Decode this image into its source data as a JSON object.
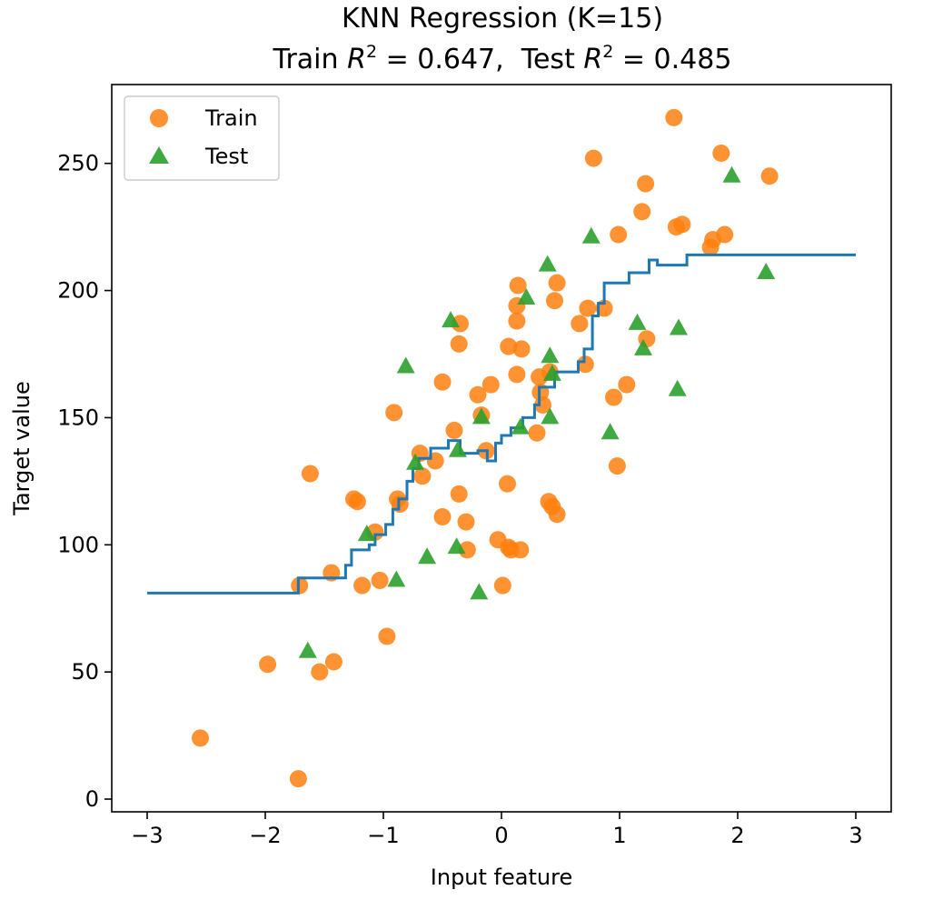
{
  "chart_data": {
    "type": "scatter",
    "title": {
      "line1": "KNN Regression (K=15)",
      "line2_train_prefix": "Train ",
      "line2_train_value": "0.647",
      "line2_sep": ",  ",
      "line2_test_prefix": "Test ",
      "line2_test_value": "0.485",
      "r_symbol": "R",
      "r_exponent": "2"
    },
    "xlabel": "Input feature",
    "ylabel": "Target value",
    "xlim": [
      -3.3,
      3.3
    ],
    "ylim": [
      -5,
      281
    ],
    "xticks": [
      -3,
      -2,
      -1,
      0,
      1,
      2,
      3
    ],
    "xtick_labels": [
      "−3",
      "−2",
      "−1",
      "0",
      "1",
      "2",
      "3"
    ],
    "yticks": [
      0,
      50,
      100,
      150,
      200,
      250
    ],
    "ytick_labels": [
      "0",
      "50",
      "100",
      "150",
      "200",
      "250"
    ],
    "legend": {
      "placement": "top-left",
      "train_label": "Train",
      "test_label": "Test"
    },
    "colors": {
      "train": "#ff7f0e",
      "test": "#2ca02c",
      "line": "#1f77b4"
    },
    "series": [
      {
        "name": "Train",
        "marker": "circle",
        "points": [
          [
            -2.55,
            24
          ],
          [
            -1.98,
            53
          ],
          [
            -1.72,
            8
          ],
          [
            -1.71,
            84
          ],
          [
            -1.62,
            128
          ],
          [
            -1.54,
            50
          ],
          [
            -1.44,
            89
          ],
          [
            -1.42,
            54
          ],
          [
            -1.25,
            118
          ],
          [
            -1.22,
            117
          ],
          [
            -1.18,
            84
          ],
          [
            -1.07,
            105
          ],
          [
            -1.03,
            86
          ],
          [
            -0.97,
            64
          ],
          [
            -0.91,
            152
          ],
          [
            -0.88,
            118
          ],
          [
            -0.86,
            116
          ],
          [
            -0.69,
            136
          ],
          [
            -0.67,
            127
          ],
          [
            -0.56,
            133
          ],
          [
            -0.5,
            164
          ],
          [
            -0.5,
            111
          ],
          [
            -0.4,
            145
          ],
          [
            -0.36,
            179
          ],
          [
            -0.35,
            187
          ],
          [
            -0.36,
            120
          ],
          [
            -0.3,
            109
          ],
          [
            -0.29,
            98
          ],
          [
            -0.2,
            159
          ],
          [
            -0.17,
            151
          ],
          [
            -0.13,
            137
          ],
          [
            -0.09,
            163
          ],
          [
            -0.03,
            102
          ],
          [
            0.01,
            84
          ],
          [
            0.05,
            124
          ],
          [
            0.06,
            178
          ],
          [
            0.06,
            99
          ],
          [
            0.08,
            98
          ],
          [
            0.13,
            194
          ],
          [
            0.13,
            188
          ],
          [
            0.14,
            202
          ],
          [
            0.13,
            167
          ],
          [
            0.17,
            177
          ],
          [
            0.16,
            98
          ],
          [
            0.3,
            144
          ],
          [
            0.32,
            166
          ],
          [
            0.33,
            160
          ],
          [
            0.35,
            155
          ],
          [
            0.4,
            117
          ],
          [
            0.41,
            168
          ],
          [
            0.43,
            115
          ],
          [
            0.45,
            196
          ],
          [
            0.47,
            203
          ],
          [
            0.47,
            112
          ],
          [
            0.66,
            187
          ],
          [
            0.71,
            171
          ],
          [
            0.73,
            193
          ],
          [
            0.78,
            252
          ],
          [
            0.87,
            193
          ],
          [
            0.95,
            158
          ],
          [
            0.98,
            131
          ],
          [
            0.99,
            222
          ],
          [
            1.06,
            163
          ],
          [
            1.19,
            231
          ],
          [
            1.22,
            242
          ],
          [
            1.23,
            181
          ],
          [
            1.46,
            268
          ],
          [
            1.48,
            225
          ],
          [
            1.53,
            226
          ],
          [
            1.77,
            217
          ],
          [
            1.79,
            220
          ],
          [
            1.86,
            254
          ],
          [
            1.89,
            222
          ],
          [
            2.27,
            245
          ]
        ]
      },
      {
        "name": "Test",
        "marker": "triangle",
        "points": [
          [
            -1.64,
            58
          ],
          [
            -1.14,
            104
          ],
          [
            -0.89,
            86
          ],
          [
            -0.81,
            170
          ],
          [
            -0.73,
            132
          ],
          [
            -0.63,
            95
          ],
          [
            -0.43,
            188
          ],
          [
            -0.38,
            99
          ],
          [
            -0.37,
            137
          ],
          [
            -0.19,
            81
          ],
          [
            -0.17,
            150
          ],
          [
            0.16,
            146
          ],
          [
            0.21,
            197
          ],
          [
            0.39,
            210
          ],
          [
            0.41,
            174
          ],
          [
            0.41,
            150
          ],
          [
            0.43,
            167
          ],
          [
            0.76,
            221
          ],
          [
            0.92,
            144
          ],
          [
            1.15,
            187
          ],
          [
            1.2,
            177
          ],
          [
            1.49,
            161
          ],
          [
            1.5,
            185
          ],
          [
            1.95,
            245
          ],
          [
            2.24,
            207
          ]
        ]
      },
      {
        "name": "",
        "marker": "line",
        "points": [
          [
            -3,
            81
          ],
          [
            -1.72,
            81
          ],
          [
            -1.72,
            87
          ],
          [
            -1.32,
            87
          ],
          [
            -1.32,
            92
          ],
          [
            -1.27,
            92
          ],
          [
            -1.27,
            98
          ],
          [
            -1.12,
            98
          ],
          [
            -1.12,
            100
          ],
          [
            -1.07,
            100
          ],
          [
            -1.07,
            104
          ],
          [
            -0.98,
            104
          ],
          [
            -0.98,
            108
          ],
          [
            -0.92,
            108
          ],
          [
            -0.92,
            114
          ],
          [
            -0.87,
            114
          ],
          [
            -0.87,
            118
          ],
          [
            -0.8,
            118
          ],
          [
            -0.8,
            125
          ],
          [
            -0.75,
            125
          ],
          [
            -0.75,
            130
          ],
          [
            -0.7,
            130
          ],
          [
            -0.7,
            134
          ],
          [
            -0.6,
            134
          ],
          [
            -0.6,
            138
          ],
          [
            -0.45,
            138
          ],
          [
            -0.45,
            141
          ],
          [
            -0.35,
            141
          ],
          [
            -0.35,
            136
          ],
          [
            -0.2,
            136
          ],
          [
            -0.2,
            137
          ],
          [
            -0.12,
            137
          ],
          [
            -0.12,
            133
          ],
          [
            -0.05,
            133
          ],
          [
            -0.05,
            140
          ],
          [
            0,
            140
          ],
          [
            0,
            143
          ],
          [
            0.08,
            143
          ],
          [
            0.08,
            146
          ],
          [
            0.18,
            146
          ],
          [
            0.18,
            150
          ],
          [
            0.28,
            150
          ],
          [
            0.28,
            155
          ],
          [
            0.32,
            155
          ],
          [
            0.32,
            162
          ],
          [
            0.45,
            162
          ],
          [
            0.45,
            168
          ],
          [
            0.65,
            168
          ],
          [
            0.65,
            172
          ],
          [
            0.7,
            172
          ],
          [
            0.7,
            177
          ],
          [
            0.77,
            177
          ],
          [
            0.77,
            190
          ],
          [
            0.82,
            190
          ],
          [
            0.82,
            195
          ],
          [
            0.87,
            195
          ],
          [
            0.87,
            203
          ],
          [
            1.08,
            203
          ],
          [
            1.08,
            207
          ],
          [
            1.25,
            207
          ],
          [
            1.25,
            212
          ],
          [
            1.32,
            212
          ],
          [
            1.32,
            210
          ],
          [
            1.57,
            210
          ],
          [
            1.57,
            214
          ],
          [
            3,
            214
          ]
        ]
      }
    ]
  }
}
